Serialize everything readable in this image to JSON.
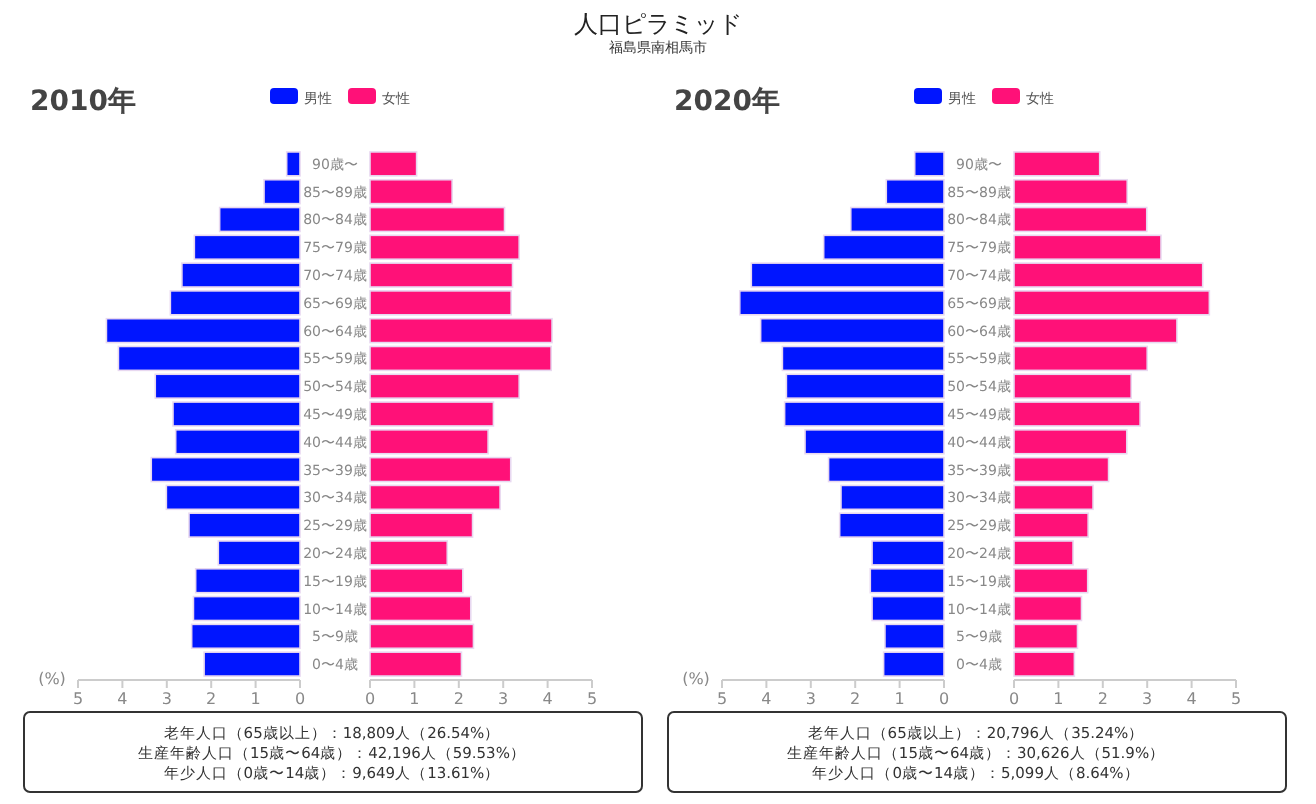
{
  "chart_data": [
    {
      "type": "bar",
      "orientation": "horizontal",
      "title": "2010年",
      "xlabel": "(%)",
      "legend": "top",
      "categories": [
        "90歳〜",
        "85〜89歳",
        "80〜84歳",
        "75〜79歳",
        "70〜74歳",
        "65〜69歳",
        "60〜64歳",
        "55〜59歳",
        "50〜54歳",
        "45〜49歳",
        "40〜44歳",
        "35〜39歳",
        "30〜34歳",
        "25〜29歳",
        "20〜24歳",
        "15〜19歳",
        "10〜14歳",
        "5〜9歳",
        "0〜4歳"
      ],
      "series": [
        {
          "name": "男性",
          "color": "#0015ff",
          "values": [
            0.3,
            0.81,
            1.81,
            2.38,
            2.66,
            2.92,
            4.36,
            4.09,
            3.26,
            2.86,
            2.8,
            3.35,
            3.01,
            2.5,
            1.84,
            2.35,
            2.4,
            2.44,
            2.16
          ]
        }
      ],
      "xlim": [
        5,
        0
      ],
      "xticks": [
        5,
        4,
        3,
        2,
        1,
        0
      ],
      "annotations": [
        "人口ピラミッド",
        "福島県南相馬市",
        "老年人口（65歳以上）：18,809人（26.54%）",
        "生産年齢人口（15歳〜64歳）：42,196人（59.53%）",
        "年少人口（0歳〜14歳）：9,649人（13.61%）"
      ]
    },
    {
      "type": "bar",
      "orientation": "horizontal",
      "legend": "top",
      "tick_labels": "x",
      "categories": [
        null,
        null,
        null,
        null,
        null,
        null,
        null,
        null,
        null,
        null,
        null,
        null,
        null,
        null,
        null,
        null,
        null,
        null,
        null
      ],
      "series": [
        {
          "name": "女性",
          "color": "#ff1178",
          "values": [
            1.05,
            1.85,
            3.03,
            3.36,
            3.21,
            3.18,
            4.1,
            4.08,
            3.36,
            2.78,
            2.66,
            3.17,
            2.93,
            2.31,
            1.74,
            2.09,
            2.27,
            2.33,
            2.06
          ]
        }
      ],
      "xlim": [
        0,
        5
      ],
      "xticks": [
        0,
        1,
        2,
        3,
        4,
        5
      ]
    },
    {
      "type": "bar",
      "orientation": "horizontal",
      "title": "2020年",
      "xlabel": "(%)",
      "legend": "top",
      "categories": [
        "90歳〜",
        "85〜89歳",
        "80〜84歳",
        "75〜79歳",
        "70〜74歳",
        "65〜69歳",
        "60〜64歳",
        "55〜59歳",
        "50〜54歳",
        "45〜49歳",
        "40〜44歳",
        "35〜39歳",
        "30〜34歳",
        "25〜29歳",
        "20〜24歳",
        "15〜19歳",
        "10〜14歳",
        "5〜9歳",
        "0〜4歳"
      ],
      "series": [
        {
          "name": "男性",
          "color": "#0015ff",
          "values": [
            0.66,
            1.3,
            2.1,
            2.71,
            4.34,
            4.6,
            4.13,
            3.64,
            3.55,
            3.59,
            3.13,
            2.6,
            2.32,
            2.35,
            1.62,
            1.66,
            1.62,
            1.33,
            1.36
          ]
        }
      ],
      "xlim": [
        5,
        0
      ],
      "xticks": [
        5,
        4,
        3,
        2,
        1,
        0
      ],
      "annotations": [
        "老年人口（65歳以上）：20,796人（35.24%）",
        "生産年齢人口（15歳〜64歳）：30,626人（51.9%）",
        "年少人口（0歳〜14歳）：5,099人（8.64%）"
      ]
    },
    {
      "type": "bar",
      "orientation": "horizontal",
      "legend": "top",
      "tick_labels": "x",
      "categories": [
        null,
        null,
        null,
        null,
        null,
        null,
        null,
        null,
        null,
        null,
        null,
        null,
        null,
        null,
        null,
        null,
        null,
        null,
        null
      ],
      "series": [
        {
          "name": "女性",
          "color": "#ff1178",
          "values": [
            1.93,
            2.55,
            2.99,
            3.31,
            4.25,
            4.4,
            3.67,
            3.0,
            2.64,
            2.84,
            2.54,
            2.13,
            1.78,
            1.67,
            1.33,
            1.66,
            1.52,
            1.43,
            1.36
          ]
        }
      ],
      "xlim": [
        0,
        5
      ],
      "xticks": [
        0,
        1,
        2,
        3,
        4,
        5
      ]
    }
  ]
}
